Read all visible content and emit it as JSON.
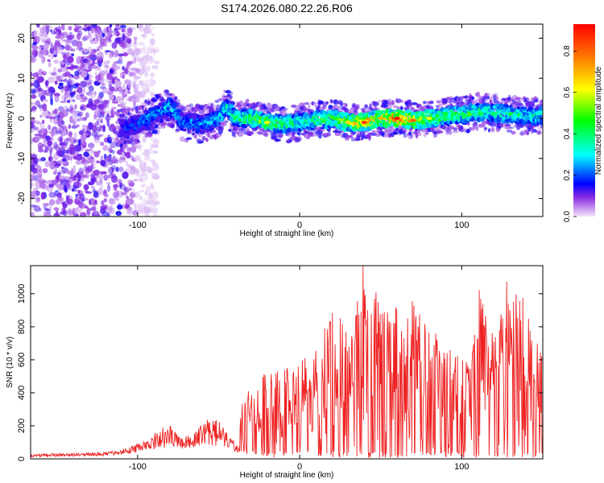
{
  "title": "S174.2026.080.22.26.R06",
  "colors": {
    "snr_line": "#ee2222",
    "frame": "#000000"
  },
  "chart_data": [
    {
      "type": "heatmap",
      "name": "spectrogram",
      "xlabel": "Height of straight line (km)",
      "ylabel": "Frequency (Hz)",
      "xlim": [
        -166,
        150
      ],
      "ylim": [
        -24.5,
        23.5
      ],
      "xticks": [
        -100,
        0,
        100
      ],
      "yticks": [
        -20,
        -10,
        0,
        10,
        20
      ],
      "colorbar": {
        "label": "Normalized spectral amplitude",
        "range": [
          0,
          0.93
        ],
        "ticks": [
          0.0,
          0.2,
          0.4,
          0.6,
          0.8
        ],
        "tick_labels": [
          "0.0",
          "0.2",
          "0.4",
          "0.6",
          "0.8"
        ]
      },
      "ridge": {
        "x": [
          -108,
          -100,
          -92,
          -85,
          -80,
          -72,
          -60,
          -50,
          -45,
          -40,
          -30,
          -20,
          -10,
          0,
          10,
          20,
          30,
          40,
          50,
          60,
          70,
          80,
          90,
          100,
          110,
          120,
          130,
          140,
          148
        ],
        "freq": [
          -2.5,
          -1.5,
          0.5,
          2,
          3,
          -1,
          -1.5,
          0,
          3,
          0,
          0,
          -1,
          -1.5,
          -1,
          -0.5,
          0,
          -1,
          -1,
          0,
          0,
          -0.5,
          0,
          0.5,
          1,
          1.5,
          1.5,
          1,
          0.5,
          0.5
        ],
        "peak_amplitude": [
          0.2,
          0.25,
          0.3,
          0.3,
          0.35,
          0.3,
          0.3,
          0.35,
          0.4,
          0.45,
          0.55,
          0.6,
          0.5,
          0.45,
          0.5,
          0.55,
          0.65,
          0.85,
          0.7,
          0.9,
          0.8,
          0.6,
          0.55,
          0.5,
          0.5,
          0.45,
          0.45,
          0.4,
          0.4
        ]
      },
      "noise_region": {
        "x": [
          -166,
          -100
        ],
        "amplitude": [
          0.03,
          0.2
        ]
      }
    },
    {
      "type": "line",
      "name": "snr",
      "xlabel": "Height of straight line (km)",
      "ylabel": "SNR (10 * v/v)",
      "xlim": [
        -166,
        150
      ],
      "ylim": [
        0,
        1170
      ],
      "xticks": [
        -100,
        0,
        100
      ],
      "yticks": [
        0,
        200,
        400,
        600,
        800,
        1000
      ],
      "envelope": {
        "x": [
          -166,
          -120,
          -105,
          -95,
          -85,
          -80,
          -72,
          -65,
          -55,
          -50,
          -45,
          -38,
          -35,
          -30,
          -20,
          -10,
          -5,
          0,
          10,
          15,
          20,
          25,
          30,
          35,
          40,
          45,
          50,
          55,
          60,
          65,
          70,
          75,
          80,
          85,
          90,
          95,
          100,
          105,
          110,
          115,
          120,
          125,
          130,
          135,
          140,
          145,
          150
        ],
        "max": [
          30,
          40,
          70,
          110,
          190,
          200,
          130,
          170,
          260,
          230,
          160,
          100,
          390,
          500,
          560,
          560,
          600,
          650,
          680,
          860,
          900,
          880,
          920,
          1000,
          1170,
          1000,
          1050,
          930,
          950,
          880,
          1000,
          860,
          780,
          760,
          680,
          700,
          600,
          640,
          1060,
          880,
          740,
          1010,
          1130,
          1040,
          960,
          800,
          620
        ],
        "min": [
          5,
          10,
          15,
          20,
          20,
          25,
          30,
          25,
          20,
          25,
          20,
          20,
          30,
          20,
          10,
          5,
          5,
          5,
          5,
          5,
          5,
          5,
          5,
          5,
          5,
          5,
          5,
          5,
          5,
          5,
          5,
          5,
          5,
          5,
          5,
          5,
          5,
          5,
          5,
          5,
          5,
          5,
          5,
          5,
          5,
          5,
          5
        ]
      },
      "peak": {
        "x": 39,
        "y": 1170
      }
    }
  ]
}
